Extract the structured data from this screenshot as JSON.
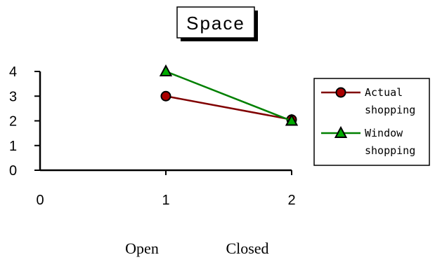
{
  "chart_data": {
    "type": "line",
    "title": "Space",
    "xlabel": "",
    "ylabel": "",
    "x_ticks": [
      "0",
      "1",
      "2"
    ],
    "y_ticks": [
      "0",
      "1",
      "2",
      "3",
      "4"
    ],
    "xlim": [
      0,
      2
    ],
    "ylim": [
      0,
      4
    ],
    "grid": false,
    "legend_position": "right",
    "series": [
      {
        "name": "Actual shopping",
        "legend_lines": [
          "Actual",
          "shopping"
        ],
        "x": [
          1,
          2
        ],
        "y": [
          3,
          2.05
        ],
        "color": "#800000",
        "marker": "circle",
        "marker_color": "#aa0000"
      },
      {
        "name": "Window shopping",
        "legend_lines": [
          "Window",
          "shopping"
        ],
        "x": [
          1,
          2
        ],
        "y": [
          4,
          2
        ],
        "color": "#008000",
        "marker": "triangle",
        "marker_color": "#00aa00"
      }
    ],
    "category_labels": [
      "Open",
      "Closed"
    ]
  }
}
